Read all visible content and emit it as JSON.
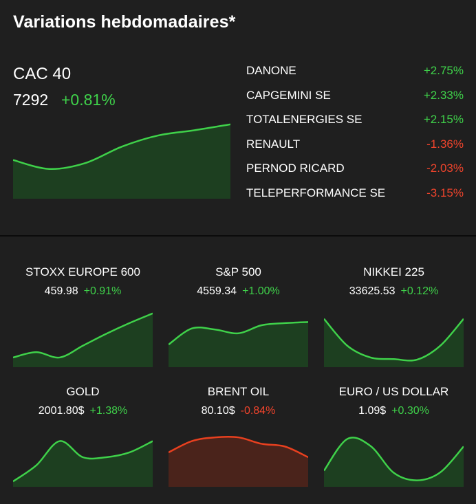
{
  "header": {
    "title": "Variations hebdomadaires*"
  },
  "main": {
    "name": "CAC 40",
    "value": "7292",
    "change": "+0.81%",
    "trend": "up",
    "color": "#3fd14a"
  },
  "movers": [
    {
      "name": "DANONE",
      "change": "+2.75%",
      "trend": "up"
    },
    {
      "name": "CAPGEMINI SE",
      "change": "+2.33%",
      "trend": "up"
    },
    {
      "name": "TOTALENERGIES SE",
      "change": "+2.15%",
      "trend": "up"
    },
    {
      "name": "RENAULT",
      "change": "-1.36%",
      "trend": "down"
    },
    {
      "name": "PERNOD RICARD",
      "change": "-2.03%",
      "trend": "down"
    },
    {
      "name": "TELEPERFORMANCE SE",
      "change": "-3.15%",
      "trend": "down"
    }
  ],
  "cards": [
    {
      "name": "STOXX EUROPE 600",
      "value": "459.98",
      "change": "+0.91%",
      "trend": "up"
    },
    {
      "name": "S&P 500",
      "value": "4559.34",
      "change": "+1.00%",
      "trend": "up"
    },
    {
      "name": "NIKKEI 225",
      "value": "33625.53",
      "change": "+0.12%",
      "trend": "up"
    },
    {
      "name": "GOLD",
      "value": "2001.80$",
      "change": "+1.38%",
      "trend": "up"
    },
    {
      "name": "BRENT OIL",
      "value": "80.10$",
      "change": "-0.84%",
      "trend": "down"
    },
    {
      "name": "EURO / US DOLLAR",
      "value": "1.09$",
      "change": "+0.30%",
      "trend": "up"
    }
  ],
  "colors": {
    "up_line": "#3fd14a",
    "up_fill": "#1d3f20",
    "down_line": "#e8401f",
    "down_fill": "#4a231b",
    "background": "#1f1f1f"
  },
  "chart_data": [
    {
      "type": "area",
      "series": [
        {
          "values": [
            0.52,
            0.4,
            0.48,
            0.7,
            0.85,
            0.92,
            1.0
          ]
        }
      ],
      "ylim": [
        0,
        1.1
      ],
      "grid": false
    },
    {
      "type": "area",
      "series": [
        {
          "values": [
            0.18,
            0.28,
            0.18,
            0.4,
            0.62,
            0.82,
            1.0
          ]
        }
      ],
      "ylim": [
        0,
        1.1
      ],
      "grid": false
    },
    {
      "type": "area",
      "series": [
        {
          "values": [
            0.42,
            0.72,
            0.7,
            0.63,
            0.78,
            0.82,
            0.84
          ]
        }
      ],
      "ylim": [
        0,
        1.1
      ],
      "grid": false
    },
    {
      "type": "area",
      "series": [
        {
          "values": [
            0.9,
            0.4,
            0.18,
            0.15,
            0.14,
            0.4,
            0.9
          ]
        }
      ],
      "ylim": [
        0,
        1.1
      ],
      "grid": false
    },
    {
      "type": "area",
      "series": [
        {
          "values": [
            0.1,
            0.4,
            0.85,
            0.55,
            0.55,
            0.64,
            0.85
          ]
        }
      ],
      "ylim": [
        0,
        1.1
      ],
      "grid": false
    },
    {
      "type": "area",
      "series": [
        {
          "values": [
            0.64,
            0.85,
            0.92,
            0.92,
            0.8,
            0.75,
            0.55
          ]
        }
      ],
      "ylim": [
        0,
        1.1
      ],
      "grid": false
    },
    {
      "type": "area",
      "series": [
        {
          "values": [
            0.3,
            0.89,
            0.76,
            0.26,
            0.12,
            0.27,
            0.75
          ]
        }
      ],
      "ylim": [
        0,
        1.1
      ],
      "grid": false
    }
  ]
}
